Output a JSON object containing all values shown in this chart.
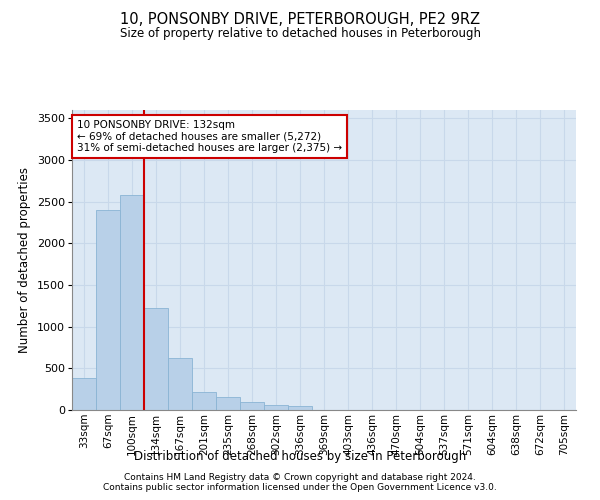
{
  "title": "10, PONSONBY DRIVE, PETERBOROUGH, PE2 9RZ",
  "subtitle": "Size of property relative to detached houses in Peterborough",
  "xlabel": "Distribution of detached houses by size in Peterborough",
  "ylabel": "Number of detached properties",
  "footer_line1": "Contains HM Land Registry data © Crown copyright and database right 2024.",
  "footer_line2": "Contains public sector information licensed under the Open Government Licence v3.0.",
  "bar_labels": [
    "33sqm",
    "67sqm",
    "100sqm",
    "134sqm",
    "167sqm",
    "201sqm",
    "235sqm",
    "268sqm",
    "302sqm",
    "336sqm",
    "369sqm",
    "403sqm",
    "436sqm",
    "470sqm",
    "504sqm",
    "537sqm",
    "571sqm",
    "604sqm",
    "638sqm",
    "672sqm",
    "705sqm"
  ],
  "bar_values": [
    390,
    2400,
    2580,
    1220,
    630,
    220,
    160,
    100,
    60,
    45,
    0,
    0,
    0,
    0,
    0,
    0,
    0,
    0,
    0,
    0,
    0
  ],
  "bar_color": "#b8d0e8",
  "bar_edge_color": "#8ab4d4",
  "red_line_x": 2.5,
  "annotation_line1": "10 PONSONBY DRIVE: 132sqm",
  "annotation_line2": "← 69% of detached houses are smaller (5,272)",
  "annotation_line3": "31% of semi-detached houses are larger (2,375) →",
  "annotation_box_facecolor": "#ffffff",
  "annotation_box_edgecolor": "#cc0000",
  "red_line_color": "#cc0000",
  "grid_color": "#c8d8ea",
  "bg_color": "#dce8f4",
  "ylim": [
    0,
    3600
  ],
  "yticks": [
    0,
    500,
    1000,
    1500,
    2000,
    2500,
    3000,
    3500
  ]
}
